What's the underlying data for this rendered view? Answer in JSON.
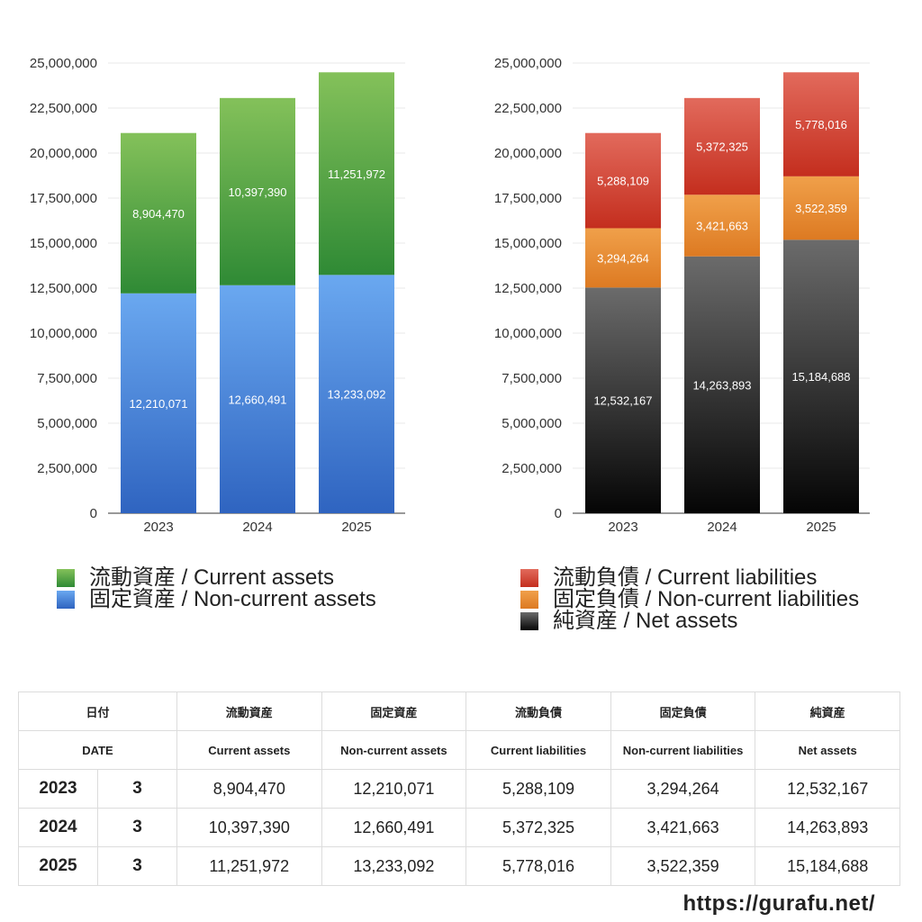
{
  "charts": [
    {
      "type": "bar",
      "stacked": true,
      "categories": [
        "2023",
        "2024",
        "2025"
      ],
      "ylim": [
        0,
        25000000
      ],
      "yticks": [
        "0",
        "2,500,000",
        "5,000,000",
        "7,500,000",
        "10,000,000",
        "12,500,000",
        "15,000,000",
        "17,500,000",
        "20,000,000",
        "22,500,000",
        "25,000,000"
      ],
      "series": [
        {
          "name": "固定資産 / Non-current assets",
          "values": [
            12210071,
            12660491,
            13233092
          ],
          "labels": [
            "12,210,071",
            "12,660,491",
            "13,233,092"
          ],
          "color_top": "#6aa8f0",
          "color_bottom": "#2f64c0"
        },
        {
          "name": "流動資産 / Current assets",
          "values": [
            8904470,
            10397390,
            11251972
          ],
          "labels": [
            "8,904,470",
            "10,397,390",
            "11,251,972"
          ],
          "color_top": "#84c15a",
          "color_bottom": "#2f8a35"
        }
      ],
      "legend_order": [
        1,
        0
      ]
    },
    {
      "type": "bar",
      "stacked": true,
      "categories": [
        "2023",
        "2024",
        "2025"
      ],
      "ylim": [
        0,
        25000000
      ],
      "yticks": [
        "0",
        "2,500,000",
        "5,000,000",
        "7,500,000",
        "10,000,000",
        "12,500,000",
        "15,000,000",
        "17,500,000",
        "20,000,000",
        "22,500,000",
        "25,000,000"
      ],
      "series": [
        {
          "name": "純資産 / Net assets",
          "values": [
            12532167,
            14263893,
            15184688
          ],
          "labels": [
            "12,532,167",
            "14,263,893",
            "15,184,688"
          ],
          "color_top": "#6b6b6b",
          "color_bottom": "#050505"
        },
        {
          "name": "固定負債 / Non-current liabilities",
          "values": [
            3294264,
            3421663,
            3522359
          ],
          "labels": [
            "3,294,264",
            "3,421,663",
            "3,522,359"
          ],
          "color_top": "#f0a04a",
          "color_bottom": "#dd7a22"
        },
        {
          "name": "流動負債 / Current liabilities",
          "values": [
            5288109,
            5372325,
            5778016
          ],
          "labels": [
            "5,288,109",
            "5,372,325",
            "5,778,016"
          ],
          "color_top": "#e26a5c",
          "color_bottom": "#c42e1e"
        }
      ],
      "legend_order": [
        2,
        1,
        0
      ]
    }
  ],
  "table": {
    "headers_jp": [
      "日付",
      "流動資産",
      "固定資産",
      "流動負債",
      "固定負債",
      "純資産"
    ],
    "headers_en": [
      "DATE",
      "Current assets",
      "Non-current assets",
      "Current liabilities",
      "Non-current liabilities",
      "Net assets"
    ],
    "rows": [
      {
        "year": "2023",
        "month": "3",
        "values": [
          "8,904,470",
          "12,210,071",
          "5,288,109",
          "3,294,264",
          "12,532,167"
        ]
      },
      {
        "year": "2024",
        "month": "3",
        "values": [
          "10,397,390",
          "12,660,491",
          "5,372,325",
          "3,421,663",
          "14,263,893"
        ]
      },
      {
        "year": "2025",
        "month": "3",
        "values": [
          "11,251,972",
          "13,233,092",
          "5,778,016",
          "3,522,359",
          "15,184,688"
        ]
      }
    ]
  },
  "footer": {
    "url": "https://gurafu.net/"
  }
}
